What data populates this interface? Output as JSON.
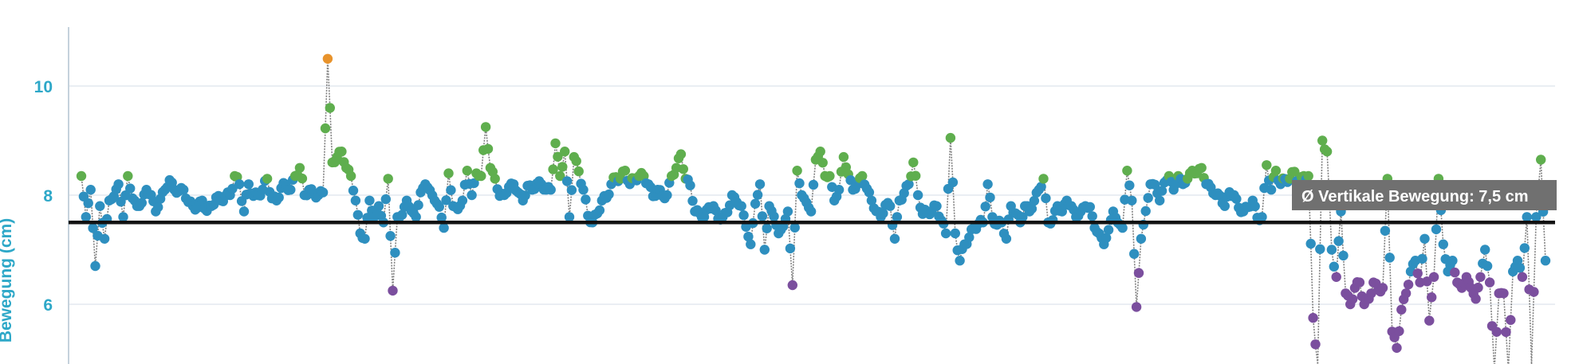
{
  "chart_data": {
    "type": "scatter",
    "title": "",
    "ylabel": "Bewegung (cm)",
    "xlabel": "",
    "ylim": [
      5.0,
      11.0
    ],
    "y_ticks": [
      {
        "value": 6,
        "label": "6"
      },
      {
        "value": 8,
        "label": "8"
      },
      {
        "value": 10,
        "label": "10"
      }
    ],
    "grid": true,
    "average": {
      "value": 7.5,
      "label": "Ø Vertikale Bewegung: 7,5 cm"
    },
    "colors": {
      "normal": "#2e8fbf",
      "high": "#5fae4e",
      "low": "#7b4f9e",
      "peak": "#e8932c",
      "average": "#111111"
    },
    "anchors": [
      [
        0,
        8.35
      ],
      [
        1,
        7.6
      ],
      [
        2,
        8.1
      ],
      [
        3,
        6.7
      ],
      [
        4,
        7.8
      ],
      [
        5,
        7.2
      ],
      [
        6,
        7.9
      ],
      [
        8,
        8.2
      ],
      [
        9,
        7.6
      ],
      [
        10,
        8.35
      ],
      [
        12,
        7.8
      ],
      [
        14,
        8.1
      ],
      [
        16,
        7.7
      ],
      [
        18,
        8.1
      ],
      [
        20,
        8.1
      ],
      [
        22,
        8.1
      ],
      [
        24,
        7.8
      ],
      [
        26,
        7.9
      ],
      [
        28,
        7.8
      ],
      [
        30,
        7.9
      ],
      [
        32,
        8.0
      ],
      [
        33,
        8.35
      ],
      [
        34,
        8.2
      ],
      [
        35,
        7.7
      ],
      [
        36,
        8.2
      ],
      [
        38,
        8.0
      ],
      [
        40,
        8.3
      ],
      [
        42,
        7.9
      ],
      [
        44,
        8.2
      ],
      [
        45,
        8.1
      ],
      [
        46,
        8.35
      ],
      [
        47,
        8.5
      ],
      [
        48,
        8.0
      ],
      [
        49,
        8.1
      ],
      [
        51,
        8.0
      ],
      [
        52,
        8.05
      ],
      [
        53,
        10.5
      ],
      [
        54,
        8.6
      ],
      [
        55,
        8.7
      ],
      [
        56,
        8.8
      ],
      [
        57,
        8.5
      ],
      [
        58,
        8.35
      ],
      [
        59,
        7.9
      ],
      [
        60,
        7.3
      ],
      [
        61,
        7.2
      ],
      [
        62,
        7.9
      ],
      [
        63,
        7.6
      ],
      [
        64,
        7.8
      ],
      [
        65,
        7.5
      ],
      [
        66,
        8.3
      ],
      [
        67,
        6.25
      ],
      [
        68,
        7.6
      ],
      [
        70,
        7.9
      ],
      [
        72,
        7.6
      ],
      [
        74,
        8.2
      ],
      [
        76,
        7.9
      ],
      [
        78,
        7.4
      ],
      [
        79,
        8.4
      ],
      [
        80,
        7.8
      ],
      [
        82,
        7.9
      ],
      [
        83,
        8.45
      ],
      [
        84,
        8.0
      ],
      [
        85,
        8.4
      ],
      [
        86,
        8.35
      ],
      [
        87,
        9.25
      ],
      [
        88,
        8.5
      ],
      [
        89,
        8.3
      ],
      [
        91,
        8.0
      ],
      [
        93,
        8.2
      ],
      [
        95,
        7.9
      ],
      [
        97,
        8.1
      ],
      [
        99,
        8.2
      ],
      [
        101,
        8.1
      ],
      [
        102,
        8.95
      ],
      [
        103,
        8.35
      ],
      [
        104,
        8.8
      ],
      [
        105,
        7.6
      ],
      [
        106,
        8.7
      ],
      [
        108,
        8.1
      ],
      [
        110,
        7.5
      ],
      [
        112,
        7.9
      ],
      [
        114,
        8.2
      ],
      [
        116,
        8.3
      ],
      [
        117,
        8.45
      ],
      [
        118,
        8.2
      ],
      [
        120,
        8.35
      ],
      [
        122,
        8.2
      ],
      [
        124,
        8.1
      ],
      [
        126,
        8.0
      ],
      [
        127,
        8.35
      ],
      [
        128,
        8.5
      ],
      [
        129,
        8.75
      ],
      [
        130,
        8.3
      ],
      [
        132,
        7.7
      ],
      [
        134,
        7.6
      ],
      [
        136,
        7.8
      ],
      [
        138,
        7.6
      ],
      [
        140,
        8.0
      ],
      [
        142,
        7.8
      ],
      [
        144,
        7.1
      ],
      [
        146,
        8.2
      ],
      [
        147,
        7.0
      ],
      [
        148,
        7.8
      ],
      [
        150,
        7.3
      ],
      [
        152,
        7.7
      ],
      [
        153,
        6.35
      ],
      [
        154,
        8.45
      ],
      [
        155,
        8.0
      ],
      [
        157,
        7.7
      ],
      [
        158,
        8.65
      ],
      [
        159,
        8.8
      ],
      [
        160,
        8.35
      ],
      [
        161,
        8.35
      ],
      [
        162,
        7.9
      ],
      [
        163,
        8.1
      ],
      [
        164,
        8.7
      ],
      [
        166,
        8.1
      ],
      [
        167,
        8.2
      ],
      [
        168,
        8.35
      ],
      [
        170,
        7.9
      ],
      [
        172,
        7.6
      ],
      [
        174,
        7.8
      ],
      [
        175,
        7.2
      ],
      [
        176,
        7.9
      ],
      [
        178,
        8.2
      ],
      [
        179,
        8.6
      ],
      [
        180,
        8.0
      ],
      [
        182,
        7.7
      ],
      [
        184,
        7.8
      ],
      [
        186,
        7.3
      ],
      [
        187,
        9.05
      ],
      [
        188,
        7.3
      ],
      [
        189,
        6.8
      ],
      [
        190,
        7.1
      ],
      [
        192,
        7.4
      ],
      [
        194,
        7.5
      ],
      [
        195,
        8.2
      ],
      [
        196,
        7.6
      ],
      [
        198,
        7.5
      ],
      [
        199,
        7.2
      ],
      [
        200,
        7.8
      ],
      [
        202,
        7.5
      ],
      [
        204,
        7.7
      ],
      [
        206,
        8.1
      ],
      [
        207,
        8.3
      ],
      [
        208,
        7.5
      ],
      [
        210,
        7.8
      ],
      [
        212,
        7.9
      ],
      [
        214,
        7.6
      ],
      [
        216,
        7.8
      ],
      [
        218,
        7.4
      ],
      [
        220,
        7.1
      ],
      [
        222,
        7.7
      ],
      [
        224,
        7.4
      ],
      [
        225,
        8.45
      ],
      [
        226,
        7.9
      ],
      [
        227,
        5.95
      ],
      [
        228,
        7.2
      ],
      [
        230,
        8.2
      ],
      [
        232,
        7.9
      ],
      [
        234,
        8.35
      ],
      [
        235,
        8.1
      ],
      [
        236,
        8.35
      ],
      [
        237,
        8.2
      ],
      [
        238,
        8.3
      ],
      [
        239,
        8.45
      ],
      [
        240,
        8.4
      ],
      [
        241,
        8.5
      ],
      [
        242,
        8.2
      ],
      [
        244,
        8.0
      ],
      [
        246,
        7.8
      ],
      [
        248,
        8.0
      ],
      [
        250,
        7.7
      ],
      [
        252,
        7.9
      ],
      [
        254,
        7.6
      ],
      [
        255,
        8.55
      ],
      [
        256,
        8.1
      ],
      [
        257,
        8.45
      ],
      [
        258,
        8.2
      ],
      [
        260,
        8.3
      ],
      [
        262,
        8.2
      ],
      [
        263,
        8.35
      ],
      [
        264,
        8.35
      ],
      [
        265,
        5.75
      ],
      [
        266,
        4.9
      ],
      [
        267,
        9.0
      ],
      [
        268,
        8.8
      ],
      [
        269,
        7.0
      ],
      [
        270,
        6.5
      ],
      [
        271,
        7.7
      ],
      [
        272,
        6.2
      ],
      [
        273,
        6.0
      ],
      [
        274,
        6.3
      ],
      [
        275,
        6.4
      ],
      [
        276,
        6.0
      ],
      [
        277,
        6.1
      ],
      [
        278,
        6.4
      ],
      [
        280,
        6.3
      ],
      [
        281,
        8.3
      ],
      [
        282,
        5.5
      ],
      [
        283,
        5.2
      ],
      [
        284,
        5.9
      ],
      [
        285,
        6.2
      ],
      [
        286,
        6.6
      ],
      [
        287,
        6.8
      ],
      [
        288,
        6.4
      ],
      [
        289,
        7.2
      ],
      [
        290,
        5.7
      ],
      [
        291,
        6.5
      ],
      [
        292,
        8.3
      ],
      [
        293,
        7.1
      ],
      [
        294,
        6.6
      ],
      [
        295,
        6.8
      ],
      [
        296,
        6.4
      ],
      [
        297,
        6.3
      ],
      [
        298,
        6.5
      ],
      [
        299,
        6.3
      ],
      [
        300,
        6.1
      ],
      [
        301,
        6.5
      ],
      [
        302,
        7.0
      ],
      [
        303,
        6.4
      ],
      [
        304,
        4.8
      ],
      [
        305,
        6.2
      ],
      [
        306,
        6.2
      ],
      [
        307,
        4.8
      ],
      [
        308,
        6.6
      ],
      [
        309,
        6.8
      ],
      [
        310,
        6.5
      ],
      [
        311,
        7.6
      ],
      [
        312,
        4.9
      ],
      [
        313,
        7.6
      ],
      [
        314,
        8.65
      ],
      [
        315,
        6.8
      ]
    ]
  }
}
